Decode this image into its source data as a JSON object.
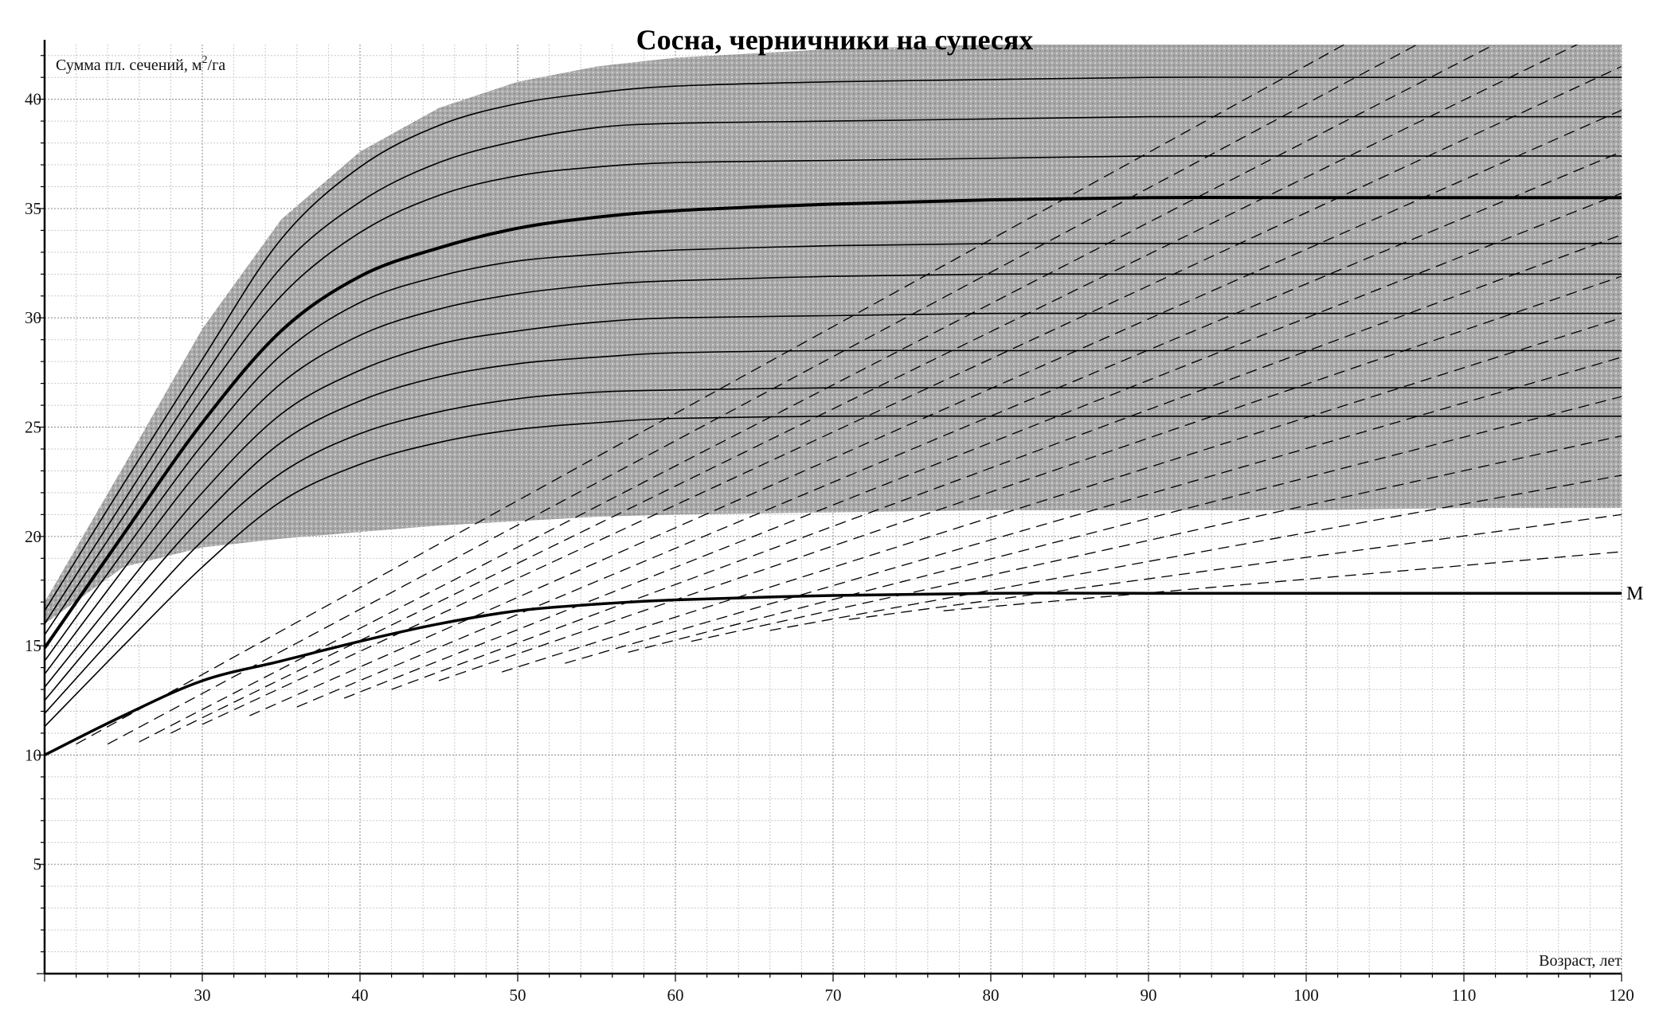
{
  "chart_data": {
    "type": "line",
    "title": "Сосна, черничники на супесях",
    "ylabel_prefix": "Сумма пл. сечений, м",
    "ylabel_sup": "2",
    "ylabel_suffix": "/га",
    "xlabel": "Возраст, лет",
    "xlim": [
      20,
      120
    ],
    "ylim": [
      0,
      42.5
    ],
    "x_ticks": [
      30,
      40,
      50,
      60,
      70,
      80,
      90,
      100,
      110,
      120
    ],
    "y_ticks": [
      5,
      10,
      15,
      20,
      25,
      30,
      35,
      40
    ],
    "grid": true,
    "x": [
      20,
      25,
      30,
      35,
      40,
      45,
      50,
      55,
      60,
      70,
      80,
      90,
      100,
      110,
      120
    ],
    "band": {
      "upper": [
        17.0,
        23.2,
        29.5,
        34.5,
        37.6,
        39.6,
        40.8,
        41.5,
        41.9,
        42.3,
        42.5,
        42.5,
        42.5,
        42.5,
        42.5
      ],
      "lower": [
        16.0,
        18.6,
        19.5,
        19.9,
        20.2,
        20.5,
        20.7,
        20.9,
        21.0,
        21.1,
        21.2,
        21.2,
        21.2,
        21.3,
        21.3
      ]
    },
    "series": [
      {
        "values": [
          16.6,
          22.4,
          28.1,
          33.6,
          36.9,
          38.8,
          39.8,
          40.3,
          40.6,
          40.8,
          40.9,
          41.0,
          41.0,
          41.0,
          41.0
        ]
      },
      {
        "values": [
          16.0,
          21.6,
          27.2,
          32.3,
          35.3,
          37.1,
          38.1,
          38.7,
          38.9,
          39.0,
          39.1,
          39.2,
          39.2,
          39.2,
          39.2
        ]
      },
      {
        "values": [
          15.5,
          20.9,
          26.3,
          31.0,
          33.9,
          35.6,
          36.5,
          36.9,
          37.1,
          37.2,
          37.3,
          37.4,
          37.4,
          37.4,
          37.4
        ]
      },
      {
        "values": [
          14.9,
          20.1,
          25.2,
          29.4,
          31.9,
          33.2,
          34.1,
          34.6,
          34.9,
          35.2,
          35.4,
          35.5,
          35.5,
          35.5,
          35.5
        ],
        "bold": true
      },
      {
        "values": [
          14.3,
          19.3,
          24.2,
          28.3,
          30.7,
          31.9,
          32.6,
          32.9,
          33.1,
          33.3,
          33.4,
          33.4,
          33.4,
          33.4,
          33.4
        ]
      },
      {
        "values": [
          13.7,
          18.5,
          23.2,
          27.0,
          29.2,
          30.4,
          31.1,
          31.5,
          31.7,
          31.9,
          32.0,
          32.0,
          32.0,
          32.0,
          32.0
        ]
      },
      {
        "values": [
          13.1,
          17.6,
          22.0,
          25.6,
          27.6,
          28.8,
          29.4,
          29.8,
          30.0,
          30.1,
          30.2,
          30.2,
          30.2,
          30.2,
          30.2
        ]
      },
      {
        "values": [
          12.5,
          16.8,
          20.9,
          24.3,
          26.2,
          27.3,
          27.9,
          28.2,
          28.4,
          28.5,
          28.5,
          28.5,
          28.5,
          28.5,
          28.5
        ]
      },
      {
        "values": [
          11.9,
          15.9,
          19.8,
          22.9,
          24.7,
          25.7,
          26.3,
          26.6,
          26.7,
          26.8,
          26.8,
          26.8,
          26.8,
          26.8,
          26.8
        ]
      },
      {
        "values": [
          11.3,
          15.0,
          18.6,
          21.6,
          23.3,
          24.3,
          24.9,
          25.2,
          25.4,
          25.5,
          25.5,
          25.5,
          25.5,
          25.5,
          25.5
        ]
      }
    ],
    "m_line": {
      "label": "М",
      "values": [
        10.0,
        11.8,
        13.4,
        14.3,
        15.2,
        16.0,
        16.6,
        16.9,
        17.1,
        17.3,
        17.4,
        17.4,
        17.4,
        17.4,
        17.4
      ]
    },
    "dashed_lines": [
      {
        "x": [
          22,
          120
        ],
        "y": [
          10.5,
          49.5
        ]
      },
      {
        "x": [
          24,
          120
        ],
        "y": [
          10.5,
          47.5
        ]
      },
      {
        "x": [
          26,
          120
        ],
        "y": [
          10.6,
          45.5
        ]
      },
      {
        "x": [
          28,
          120
        ],
        "y": [
          11.0,
          43.5
        ]
      },
      {
        "x": [
          30,
          120
        ],
        "y": [
          11.4,
          41.5
        ]
      },
      {
        "x": [
          33,
          120
        ],
        "y": [
          11.8,
          39.5
        ]
      },
      {
        "x": [
          36,
          120
        ],
        "y": [
          12.2,
          37.6
        ]
      },
      {
        "x": [
          39,
          120
        ],
        "y": [
          12.6,
          35.7
        ]
      },
      {
        "x": [
          42,
          120
        ],
        "y": [
          13.0,
          33.8
        ]
      },
      {
        "x": [
          45,
          120
        ],
        "y": [
          13.4,
          31.9
        ]
      },
      {
        "x": [
          49,
          120
        ],
        "y": [
          13.8,
          30.0
        ]
      },
      {
        "x": [
          53,
          120
        ],
        "y": [
          14.2,
          28.2
        ]
      },
      {
        "x": [
          57,
          120
        ],
        "y": [
          14.7,
          26.4
        ]
      },
      {
        "x": [
          61,
          120
        ],
        "y": [
          15.2,
          24.6
        ]
      },
      {
        "x": [
          66,
          120
        ],
        "y": [
          15.7,
          22.8
        ]
      },
      {
        "x": [
          71,
          120
        ],
        "y": [
          16.2,
          21.0
        ]
      },
      {
        "x": [
          77,
          120
        ],
        "y": [
          16.6,
          19.3
        ]
      }
    ]
  }
}
